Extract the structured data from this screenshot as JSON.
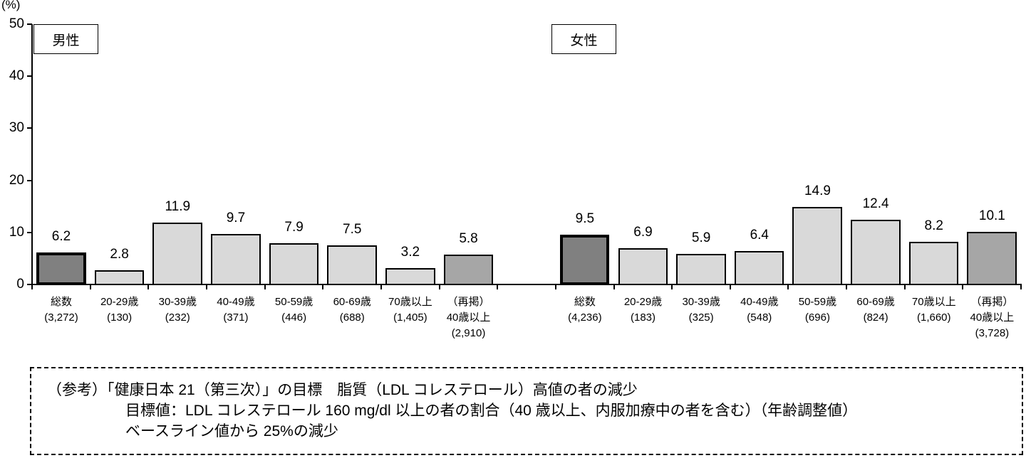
{
  "chart_data": {
    "type": "bar",
    "title": "",
    "ylabel": "(%)",
    "xlabel": "",
    "ylim": [
      0,
      50
    ],
    "yticks": [
      0,
      10,
      20,
      30,
      40,
      50
    ],
    "grid": false,
    "panels": [
      {
        "name": "男性",
        "categories": [
          "総数",
          "20-29歳",
          "30-39歳",
          "40-49歳",
          "50-59歳",
          "60-69歳",
          "70歳以上",
          "（再掲）40歳以上"
        ],
        "n": [
          "(3,272)",
          "(130)",
          "(232)",
          "(371)",
          "(446)",
          "(688)",
          "(1,405)",
          "(2,910)"
        ],
        "values": [
          6.2,
          2.8,
          11.9,
          9.7,
          7.9,
          7.5,
          3.2,
          5.8
        ]
      },
      {
        "name": "女性",
        "categories": [
          "総数",
          "20-29歳",
          "30-39歳",
          "40-49歳",
          "50-59歳",
          "60-69歳",
          "70歳以上",
          "（再掲）40歳以上"
        ],
        "n": [
          "(4,236)",
          "(183)",
          "(325)",
          "(548)",
          "(696)",
          "(824)",
          "(1,660)",
          "(3,728)"
        ],
        "values": [
          9.5,
          6.9,
          5.9,
          6.4,
          14.9,
          12.4,
          8.2,
          10.1
        ]
      }
    ],
    "colors": {
      "total": "#808080",
      "age_group": "#d9d9d9",
      "repost": "#a6a6a6"
    }
  },
  "labels": {
    "unit": "(%)",
    "male": "男性",
    "female": "女性",
    "male_cats": [
      "総数\n(3,272)",
      "20-29歳\n(130)",
      "30-39歳\n(232)",
      "40-49歳\n(371)",
      "50-59歳\n(446)",
      "60-69歳\n(688)",
      "70歳以上\n(1,405)",
      "（再掲）\n40歳以上\n(2,910)"
    ],
    "female_cats": [
      "総数\n(4,236)",
      "20-29歳\n(183)",
      "30-39歳\n(325)",
      "40-49歳\n(548)",
      "50-59歳\n(696)",
      "60-69歳\n(824)",
      "70歳以上\n(1,660)",
      "（再掲）\n40歳以上\n(3,728)"
    ]
  },
  "note": {
    "line1": "（参考）「健康日本 21（第三次）」の目標　脂質（LDL コレステロール）高値の者の減少",
    "line2": "目標値：LDL コレステロール 160 mg/dl 以上の者の割合（40 歳以上、内服加療中の者を含む）（年齢調整値）",
    "line3": "ベースライン値から 25%の減少"
  }
}
